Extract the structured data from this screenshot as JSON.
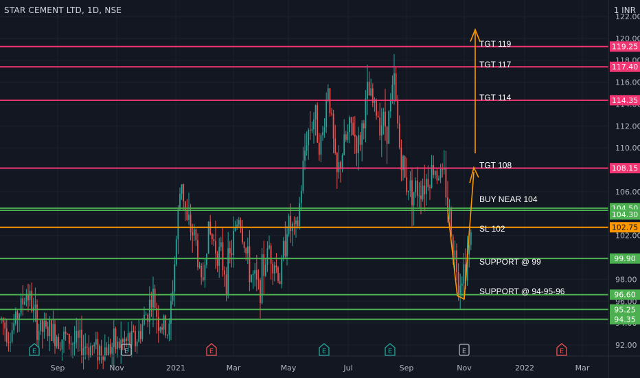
{
  "header": {
    "symbol_line": "STAR CEMENT LTD, 1D, NSE",
    "currency": "1 INR"
  },
  "colors": {
    "bg": "#131722",
    "grid": "#1e222d",
    "up": "#26a69a",
    "down": "#ef5350",
    "pink": "#f23673",
    "green": "#4caf50",
    "orange": "#ff9800",
    "axis_text": "#b2b5be",
    "annotation_text": "#ffffff"
  },
  "chart_data": {
    "type": "candlestick",
    "ylim": [
      91,
      123.5
    ],
    "y_ticks": [
      "92.00",
      "94.00",
      "96.00",
      "98.00",
      "100.00",
      "102.00",
      "104.00",
      "106.00",
      "108.00",
      "110.00",
      "112.00",
      "114.00",
      "116.00",
      "118.00",
      "120.00",
      "122.00"
    ],
    "x_ticks": [
      "Sep",
      "Nov",
      "2021",
      "Mar",
      "May",
      "Jul",
      "Sep",
      "Nov",
      "2022",
      "Mar"
    ],
    "levels": [
      {
        "value": 119.25,
        "label": "119.25",
        "color": "pink"
      },
      {
        "value": 117.4,
        "label": "117.40",
        "color": "pink"
      },
      {
        "value": 114.35,
        "label": "114.35",
        "color": "pink"
      },
      {
        "value": 108.15,
        "label": "108.15",
        "color": "pink"
      },
      {
        "value": 104.5,
        "label": "104.50",
        "color": "green"
      },
      {
        "value": 104.3,
        "label": "104.30",
        "color": "green"
      },
      {
        "value": 102.75,
        "label": "102.75",
        "color": "orange"
      },
      {
        "value": 99.9,
        "label": "99.90",
        "color": "green"
      },
      {
        "value": 96.6,
        "label": "96.60",
        "color": "green"
      },
      {
        "value": 95.25,
        "label": "95.25",
        "color": "green"
      },
      {
        "value": 94.35,
        "label": "94.35",
        "color": "green"
      }
    ],
    "annotations": [
      {
        "text": "TGT 119",
        "y": 119.5
      },
      {
        "text": "TGT 117",
        "y": 117.6
      },
      {
        "text": "TGT 114",
        "y": 114.6
      },
      {
        "text": "TGT 108",
        "y": 108.4
      },
      {
        "text": "BUY NEAR 104",
        "y": 105.3
      },
      {
        "text": "SL 102",
        "y": 102.6
      },
      {
        "text": "SUPPORT @ 99",
        "y": 99.6
      },
      {
        "text": "SUPPORT @ 94-95-96",
        "y": 96.9
      }
    ],
    "earnings_markers": [
      {
        "label": "E",
        "color": "up"
      },
      {
        "label": "E",
        "color": "neutral"
      },
      {
        "label": "E",
        "color": "down"
      },
      {
        "label": "E",
        "color": "up"
      },
      {
        "label": "E",
        "color": "up"
      },
      {
        "label": "E",
        "color": "neutral"
      },
      {
        "label": "E",
        "color": "down"
      }
    ],
    "grid": true
  }
}
